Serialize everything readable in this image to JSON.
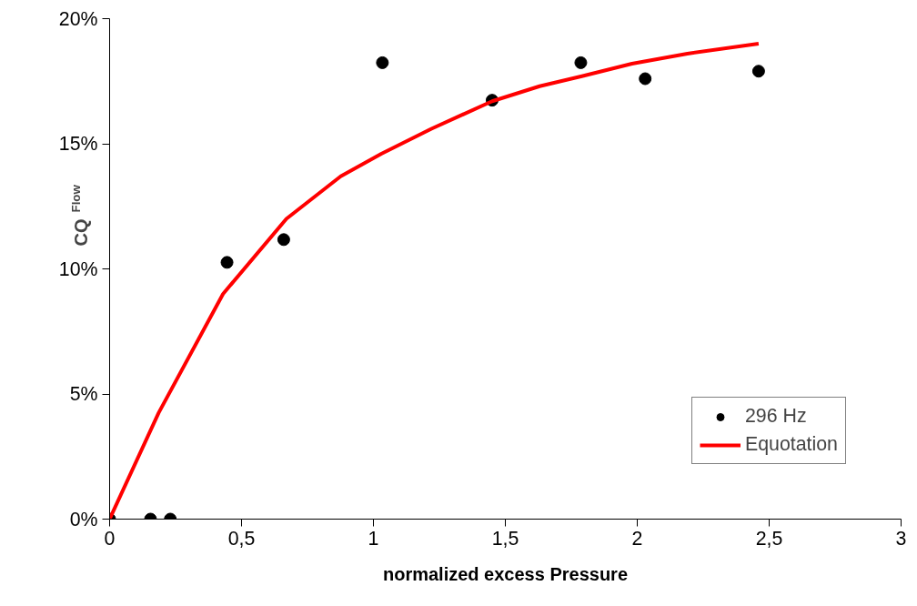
{
  "chart_data": {
    "type": "scatter",
    "xlabel": "normalized excess Pressure",
    "ylabel": "CQ$_{Flow}$",
    "xlim": [
      0,
      3
    ],
    "ylim": [
      0,
      20
    ],
    "xticks": [
      0,
      {
        "value": 0.5,
        "label": "0,5"
      },
      1,
      {
        "value": 1.5,
        "label": "1,5"
      },
      2,
      {
        "value": 2.5,
        "label": "2,5"
      },
      3
    ],
    "yticks": [
      {
        "value": 0,
        "label": "0%"
      },
      {
        "value": 5,
        "label": "5%"
      },
      {
        "value": 10,
        "label": "10%"
      },
      {
        "value": 15,
        "label": "15%"
      },
      {
        "value": 20,
        "label": "20%"
      }
    ],
    "grid": false,
    "legend": "bottom right",
    "series": [
      {
        "name": "296 Hz",
        "marker": "circle",
        "color": "#000000",
        "x": [
          0,
          0.155,
          0.23,
          0.445,
          0.66,
          1.034,
          1.45,
          1.786,
          2.03,
          2.46
        ],
        "values": [
          0,
          0,
          0,
          10.26,
          11.17,
          18.24,
          16.74,
          18.24,
          17.6,
          17.9
        ]
      },
      {
        "name": "Equotation",
        "type": "line",
        "line_style": "solid",
        "color": "#ff0000",
        "x": [
          0,
          0.186,
          0.43,
          0.67,
          0.876,
          1.03,
          1.22,
          1.45,
          1.63,
          1.79,
          1.98,
          2.19,
          2.46
        ],
        "values": [
          0,
          4.25,
          9.0,
          12.0,
          13.7,
          14.6,
          15.6,
          16.7,
          17.3,
          17.7,
          18.2,
          18.6,
          19.0
        ]
      }
    ]
  }
}
